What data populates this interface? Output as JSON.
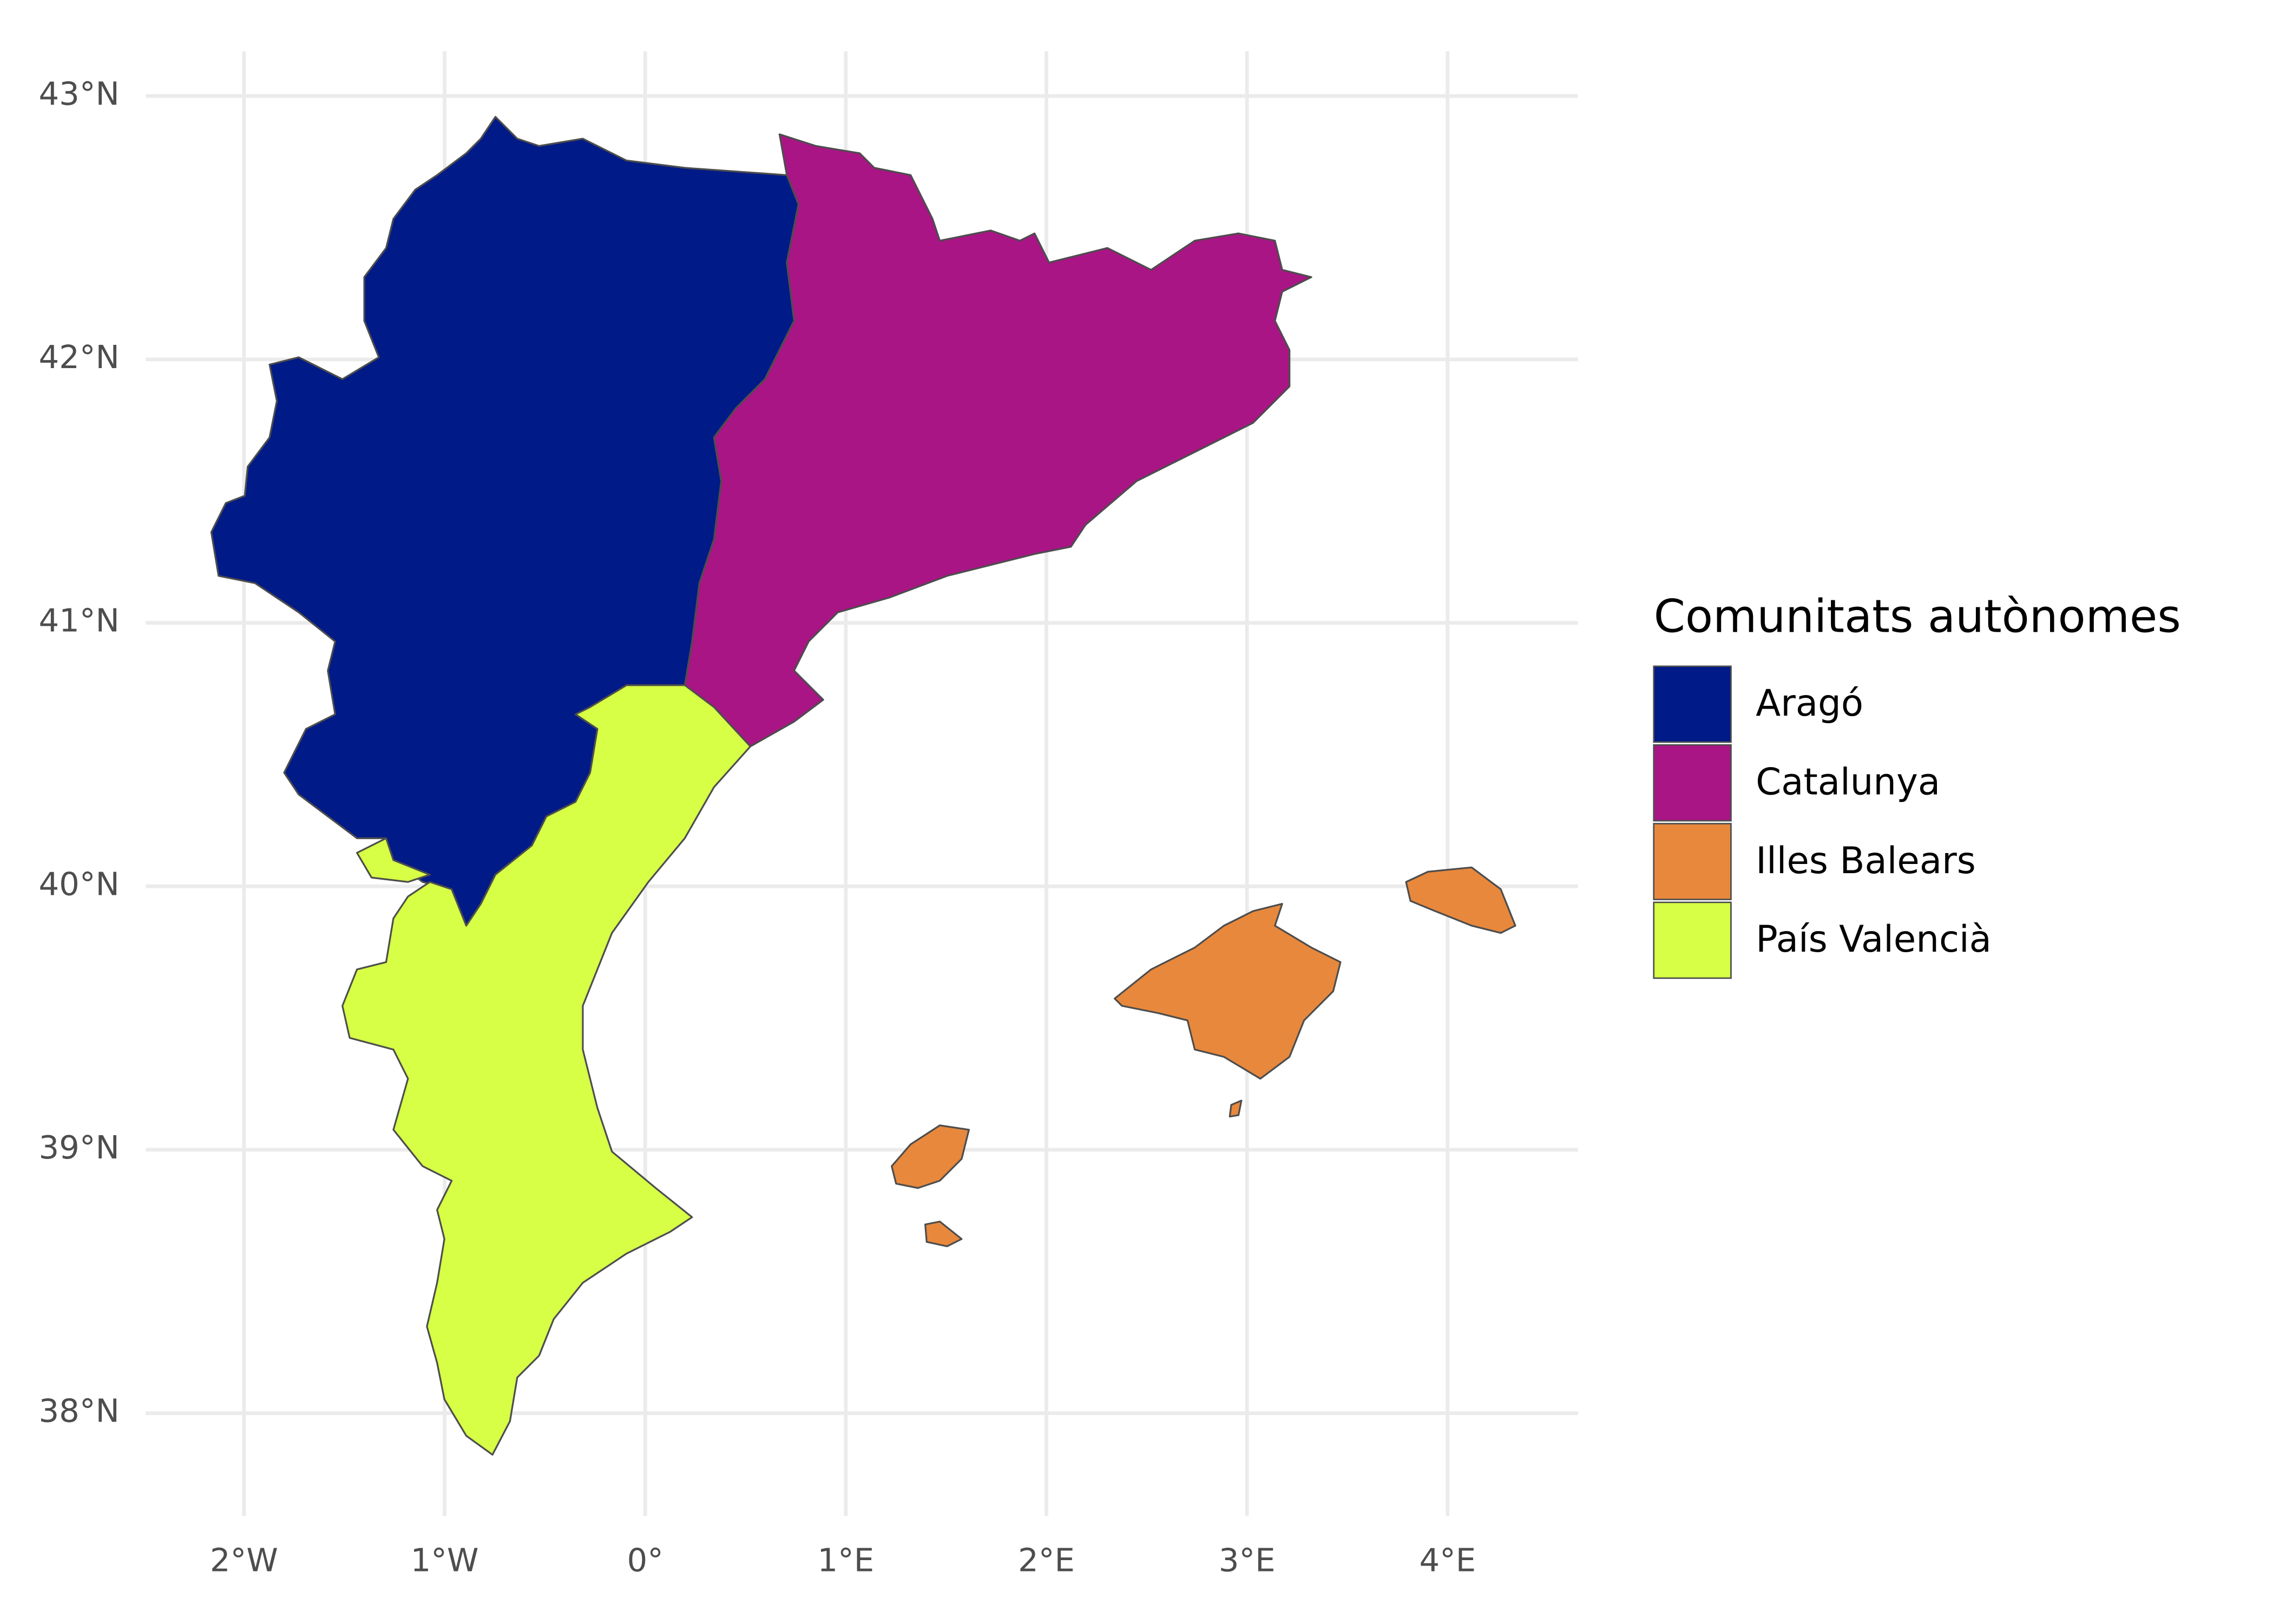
{
  "chart_data": {
    "type": "map",
    "legend_title": "Comunitats autònomes",
    "series": [
      {
        "name": "Aragó",
        "color": "#001a87"
      },
      {
        "name": "Catalunya",
        "color": "#a91585"
      },
      {
        "name": "Illes Balears",
        "color": "#e8883c"
      },
      {
        "name": "País Valencià",
        "color": "#d6ff45"
      }
    ],
    "xlim": [
      -2.49,
      4.65
    ],
    "ylim": [
      37.61,
      43.17
    ],
    "xticks": [
      {
        "value": -2,
        "label": "2°W"
      },
      {
        "value": -1,
        "label": "1°W"
      },
      {
        "value": 0,
        "label": "0°"
      },
      {
        "value": 1,
        "label": "1°E"
      },
      {
        "value": 2,
        "label": "2°E"
      },
      {
        "value": 3,
        "label": "3°E"
      },
      {
        "value": 4,
        "label": "4°E"
      }
    ],
    "yticks": [
      {
        "value": 38,
        "label": "38°N"
      },
      {
        "value": 39,
        "label": "39°N"
      },
      {
        "value": 40,
        "label": "40°N"
      },
      {
        "value": 41,
        "label": "41°N"
      },
      {
        "value": 42,
        "label": "42°N"
      },
      {
        "value": 43,
        "label": "43°N"
      }
    ],
    "grid": true
  }
}
